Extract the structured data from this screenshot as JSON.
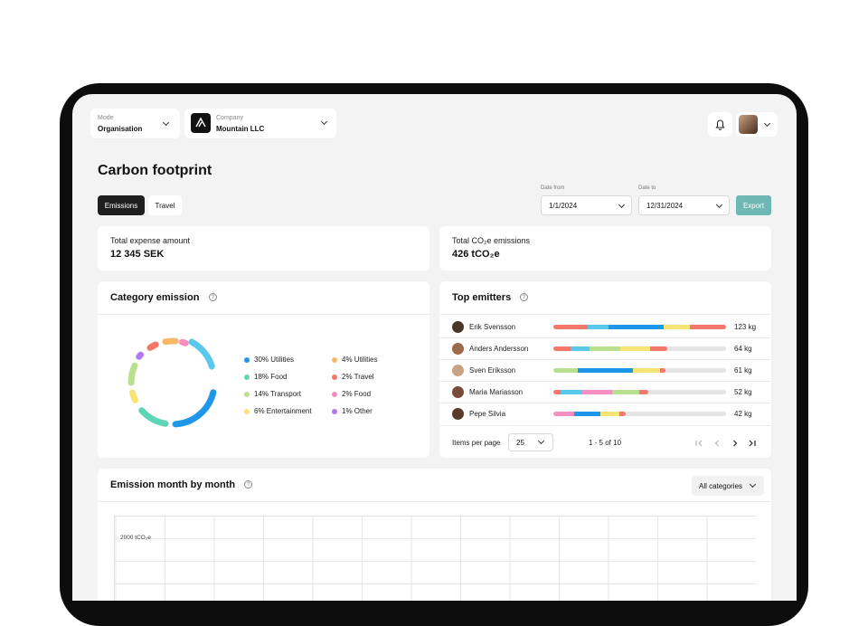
{
  "header": {
    "mode": {
      "label": "Mode",
      "value": "Organisation"
    },
    "company": {
      "label": "Company",
      "value": "Mountain LLC",
      "logo_icon": "mountain-logo-icon"
    },
    "icons": [
      "bell-icon",
      "user-avatar",
      "chevron-down-icon"
    ]
  },
  "page": {
    "title": "Carbon footprint",
    "tabs": [
      {
        "label": "Emissions",
        "active": true
      },
      {
        "label": "Travel",
        "active": false
      }
    ],
    "date_from": {
      "label": "Date from",
      "value": "1/1/2024"
    },
    "date_to": {
      "label": "Date to",
      "value": "12/31/2024"
    },
    "export_label": "Export"
  },
  "kpis": {
    "expense": {
      "label": "Total expense amount",
      "value": "12 345 SEK"
    },
    "emissions": {
      "label": "Total CO₂e emissions",
      "value": "426 tCO₂e"
    }
  },
  "category_emission": {
    "title": "Category emission",
    "legend": [
      {
        "label": "30% Utilities",
        "color": "#1e97e8"
      },
      {
        "label": "4% Utilities",
        "color": "#f5b969"
      },
      {
        "label": "18% Food",
        "color": "#5ed6b6"
      },
      {
        "label": "2% Travel",
        "color": "#f4786a"
      },
      {
        "label": "14% Transport",
        "color": "#b8e08e"
      },
      {
        "label": "2% Food",
        "color": "#f58fbf"
      },
      {
        "label": "6% Entertainment",
        "color": "#f7e477"
      },
      {
        "label": "1% Other",
        "color": "#b07af0"
      }
    ]
  },
  "top_emitters": {
    "title": "Top emitters",
    "rows": [
      {
        "name": "Erik Svensson",
        "kg": "123 kg",
        "segments": [
          {
            "c": "#f4786a",
            "v": 20
          },
          {
            "c": "#5ac8ea",
            "v": 12
          },
          {
            "c": "#1e97e8",
            "v": 32
          },
          {
            "c": "#f7e477",
            "v": 15
          },
          {
            "c": "#f4786a",
            "v": 21
          }
        ]
      },
      {
        "name": "Anders Andersson",
        "kg": "64 kg",
        "segments": [
          {
            "c": "#f4786a",
            "v": 10
          },
          {
            "c": "#5ac8ea",
            "v": 11
          },
          {
            "c": "#b8e08e",
            "v": 18
          },
          {
            "c": "#f7e477",
            "v": 17
          },
          {
            "c": "#f4786a",
            "v": 10
          }
        ]
      },
      {
        "name": "Sven Eriksson",
        "kg": "61 kg",
        "segments": [
          {
            "c": "#b8e08e",
            "v": 14
          },
          {
            "c": "#1e97e8",
            "v": 32
          },
          {
            "c": "#f7e477",
            "v": 16
          },
          {
            "c": "#f4786a",
            "v": 3
          }
        ]
      },
      {
        "name": "Maria Mariasson",
        "kg": "52 kg",
        "segments": [
          {
            "c": "#f4786a",
            "v": 4
          },
          {
            "c": "#5ac8ea",
            "v": 13
          },
          {
            "c": "#f58fbf",
            "v": 17
          },
          {
            "c": "#b8e08e",
            "v": 16
          },
          {
            "c": "#f4786a",
            "v": 5
          }
        ]
      },
      {
        "name": "Pepe Silvia",
        "kg": "42 kg",
        "segments": [
          {
            "c": "#f58fbf",
            "v": 12
          },
          {
            "c": "#1e97e8",
            "v": 15
          },
          {
            "c": "#f7e477",
            "v": 11
          },
          {
            "c": "#f4786a",
            "v": 4
          }
        ]
      }
    ],
    "items_per_page_label": "Items per page",
    "items_per_page_value": "25",
    "range_text": "1 - 5 of 10"
  },
  "monthly": {
    "title": "Emission month by month",
    "filter_label": "All categories",
    "y_tick": "2000 tCO₂e"
  },
  "colors": {
    "accent": "#6fb7b2",
    "dark_tab": "#1f1f1f"
  }
}
